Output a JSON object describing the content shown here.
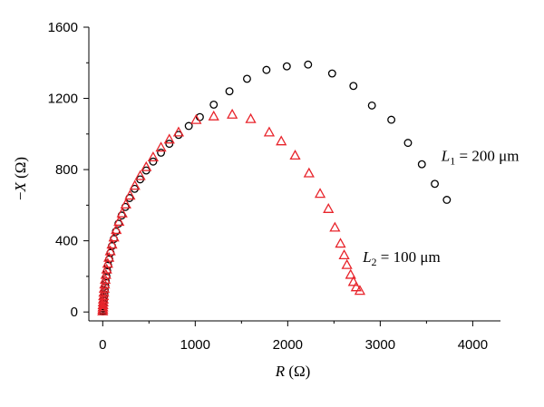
{
  "chart_data": {
    "type": "scatter",
    "title": "",
    "xlabel": "R (Ω)",
    "ylabel": "−X (Ω)",
    "xlim": [
      -150,
      4300
    ],
    "ylim": [
      -50,
      1600
    ],
    "x_ticks": [
      0,
      1000,
      2000,
      3000,
      4000
    ],
    "y_ticks": [
      0,
      400,
      800,
      1200,
      1600
    ],
    "grid": false,
    "legend": "none",
    "series": [
      {
        "marker": "circle",
        "color": "#000000",
        "points": [
          [
            0,
            3
          ],
          [
            2,
            10
          ],
          [
            4,
            20
          ],
          [
            6,
            32
          ],
          [
            8,
            46
          ],
          [
            11,
            62
          ],
          [
            14,
            80
          ],
          [
            18,
            100
          ],
          [
            22,
            122
          ],
          [
            27,
            146
          ],
          [
            33,
            172
          ],
          [
            40,
            200
          ],
          [
            48,
            230
          ],
          [
            58,
            262
          ],
          [
            70,
            296
          ],
          [
            84,
            332
          ],
          [
            100,
            370
          ],
          [
            120,
            410
          ],
          [
            143,
            452
          ],
          [
            170,
            496
          ],
          [
            205,
            542
          ],
          [
            245,
            590
          ],
          [
            290,
            640
          ],
          [
            345,
            692
          ],
          [
            405,
            745
          ],
          [
            470,
            795
          ],
          [
            545,
            845
          ],
          [
            630,
            895
          ],
          [
            720,
            945
          ],
          [
            820,
            995
          ],
          [
            930,
            1045
          ],
          [
            1050,
            1095
          ],
          [
            1200,
            1165
          ],
          [
            1370,
            1240
          ],
          [
            1560,
            1310
          ],
          [
            1770,
            1360
          ],
          [
            1990,
            1380
          ],
          [
            2220,
            1390
          ],
          [
            2480,
            1340
          ],
          [
            2710,
            1270
          ],
          [
            2910,
            1160
          ],
          [
            3120,
            1080
          ],
          [
            3300,
            950
          ],
          [
            3450,
            830
          ],
          [
            3590,
            720
          ],
          [
            3720,
            630
          ]
        ]
      },
      {
        "marker": "triangle",
        "color": "#e8242b",
        "points": [
          [
            0,
            5
          ],
          [
            1,
            15
          ],
          [
            2,
            27
          ],
          [
            3,
            40
          ],
          [
            5,
            55
          ],
          [
            7,
            72
          ],
          [
            9,
            90
          ],
          [
            12,
            110
          ],
          [
            16,
            132
          ],
          [
            21,
            156
          ],
          [
            27,
            182
          ],
          [
            34,
            210
          ],
          [
            43,
            240
          ],
          [
            54,
            272
          ],
          [
            67,
            306
          ],
          [
            82,
            342
          ],
          [
            100,
            380
          ],
          [
            121,
            420
          ],
          [
            146,
            462
          ],
          [
            176,
            508
          ],
          [
            210,
            555
          ],
          [
            250,
            605
          ],
          [
            295,
            655
          ],
          [
            347,
            710
          ],
          [
            405,
            765
          ],
          [
            470,
            815
          ],
          [
            545,
            870
          ],
          [
            630,
            925
          ],
          [
            720,
            970
          ],
          [
            820,
            1010
          ],
          [
            1010,
            1080
          ],
          [
            1200,
            1100
          ],
          [
            1400,
            1110
          ],
          [
            1600,
            1085
          ],
          [
            1800,
            1010
          ],
          [
            1930,
            960
          ],
          [
            2080,
            880
          ],
          [
            2230,
            780
          ],
          [
            2350,
            665
          ],
          [
            2440,
            580
          ],
          [
            2510,
            475
          ],
          [
            2570,
            385
          ],
          [
            2610,
            320
          ],
          [
            2640,
            265
          ],
          [
            2680,
            210
          ],
          [
            2710,
            170
          ],
          [
            2740,
            140
          ],
          [
            2780,
            120
          ]
        ]
      }
    ],
    "annotations": [
      {
        "label": "L",
        "sub": "1",
        "text": " = 200 μm",
        "x": 3700,
        "y": 850
      },
      {
        "label": "L",
        "sub": "2",
        "text": " = 100 μm",
        "x": 2850,
        "y": 280
      }
    ]
  }
}
